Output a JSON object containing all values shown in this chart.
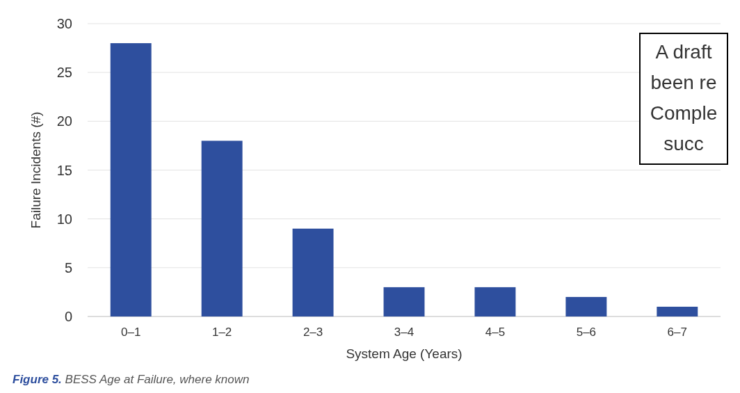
{
  "chart_data": {
    "type": "bar",
    "xlabel": "System Age (Years)",
    "ylabel": "Failure Incidents (#)",
    "categories": [
      "0–1",
      "1–2",
      "2–3",
      "3–4",
      "4–5",
      "5–6",
      "6–7"
    ],
    "values": [
      28,
      18,
      9,
      3,
      3,
      2,
      1
    ],
    "color": "#2e4f9e",
    "ylim": [
      0,
      30
    ],
    "yticks": [
      0,
      5,
      10,
      15,
      20,
      25,
      30
    ],
    "grid": "y",
    "annotations": [
      "Figure 5.",
      "BESS Age at Failure, where known",
      "A draft\nbeen re\nComple\nsucc"
    ]
  }
}
